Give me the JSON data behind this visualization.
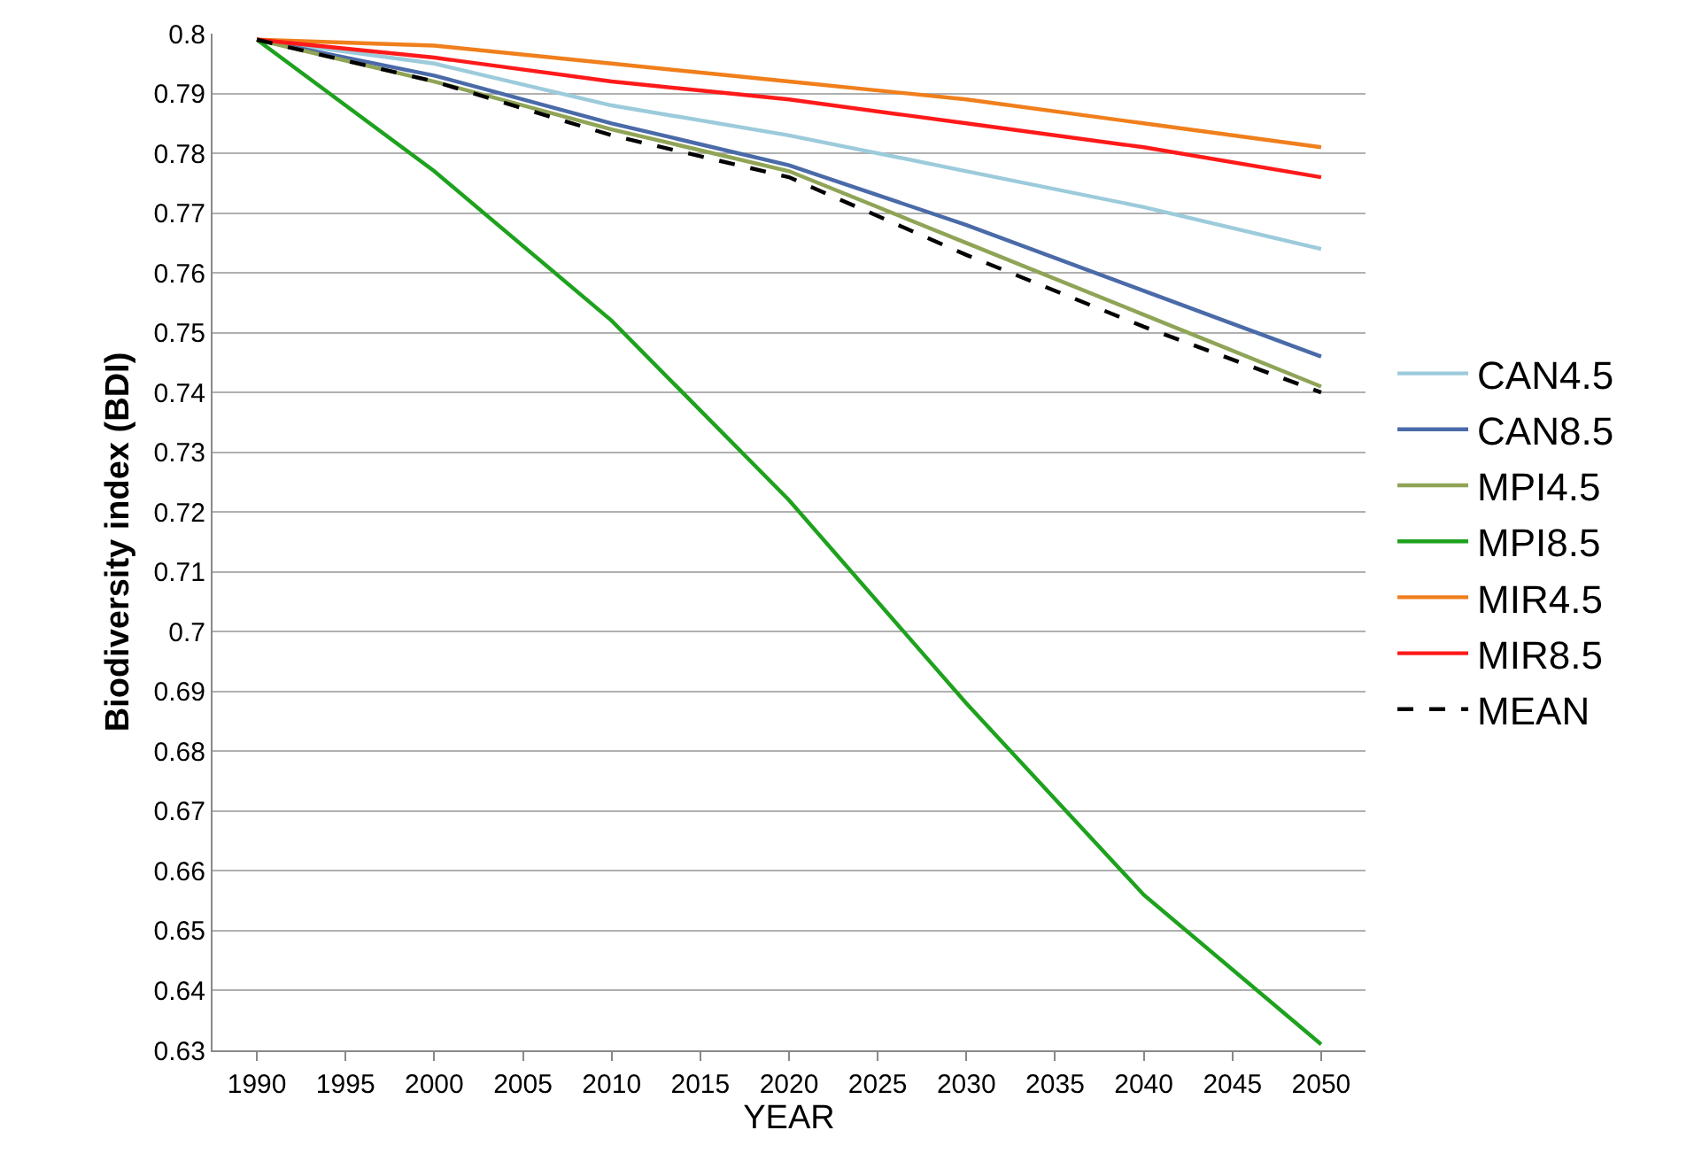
{
  "chart_data": {
    "type": "line",
    "xlabel": "YEAR",
    "ylabel": "Biodiversity index (BDI)",
    "x": [
      1990,
      2000,
      2010,
      2020,
      2030,
      2040,
      2050
    ],
    "xlim": [
      1987.5,
      2052.5
    ],
    "xticks": [
      1990,
      1995,
      2000,
      2005,
      2010,
      2015,
      2020,
      2025,
      2030,
      2035,
      2040,
      2045,
      2050
    ],
    "ylim": [
      0.63,
      0.8
    ],
    "yticks": [
      0.63,
      0.64,
      0.65,
      0.66,
      0.67,
      0.68,
      0.69,
      0.7,
      0.71,
      0.72,
      0.73,
      0.74,
      0.75,
      0.76,
      0.77,
      0.78,
      0.79,
      0.8
    ],
    "grid": "y",
    "legend": "right",
    "marker": "none",
    "line_style": "solid",
    "series": [
      {
        "name": "CAN4.5",
        "color": "#9ccbdb",
        "values": [
          0.799,
          0.795,
          0.788,
          0.783,
          0.777,
          0.771,
          0.764
        ]
      },
      {
        "name": "CAN8.5",
        "color": "#4a6aa8",
        "values": [
          0.799,
          0.793,
          0.785,
          0.778,
          0.768,
          0.757,
          0.746
        ]
      },
      {
        "name": "MPI4.5",
        "color": "#8fa456",
        "values": [
          0.799,
          0.792,
          0.784,
          0.777,
          0.765,
          0.753,
          0.741
        ]
      },
      {
        "name": "MPI8.5",
        "color": "#1ea21e",
        "values": [
          0.799,
          0.777,
          0.752,
          0.722,
          0.688,
          0.656,
          0.631
        ]
      },
      {
        "name": "MIR4.5",
        "color": "#f07f1c",
        "values": [
          0.799,
          0.798,
          0.795,
          0.792,
          0.789,
          0.785,
          0.781
        ]
      },
      {
        "name": "MIR8.5",
        "color": "#ff1a1a",
        "values": [
          0.799,
          0.796,
          0.792,
          0.789,
          0.785,
          0.781,
          0.776
        ]
      },
      {
        "name": "MEAN",
        "color": "#000000",
        "line_style": "dashed",
        "values": [
          0.799,
          0.792,
          0.783,
          0.776,
          0.763,
          0.751,
          0.74
        ]
      }
    ]
  }
}
